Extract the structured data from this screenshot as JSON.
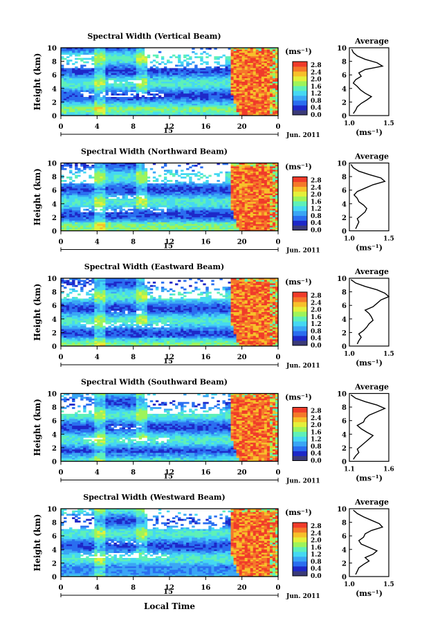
{
  "figure": {
    "xlabel": "Local Time",
    "date_label": "Jun. 2011",
    "day_label": "15",
    "ylabel": "Height (km)",
    "colorbar_unit": "(ms⁻¹)",
    "profile_title": "Average",
    "profile_xlabel": "(ms⁻¹)"
  },
  "colors": {
    "colormap": [
      "#3b3b78",
      "#1e28c8",
      "#2a6ef0",
      "#3aa6f5",
      "#45d8f2",
      "#5ef0b8",
      "#9ef45a",
      "#e4f03a",
      "#f7c02a",
      "#f5782a",
      "#f03b2a"
    ]
  },
  "chart_data": [
    {
      "type": "heatmap",
      "title": "Spectral Width (Vertical Beam)",
      "xlim": [
        0,
        24
      ],
      "xticks": [
        "0",
        "4",
        "8",
        "12",
        "16",
        "20",
        "0"
      ],
      "ylim": [
        0,
        10
      ],
      "yticks": [
        "0",
        "2",
        "4",
        "6",
        "8",
        "10"
      ],
      "colorbar": {
        "range": [
          0,
          3.0
        ],
        "ticks": [
          "0.0",
          "0.4",
          "0.8",
          "1.2",
          "1.6",
          "2.0",
          "2.4",
          "2.8"
        ]
      },
      "profile": {
        "title": "Average",
        "xlim": [
          1.0,
          1.5
        ],
        "xticks": [
          "1.0",
          "1.5"
        ],
        "heights": [
          0.3,
          0.8,
          1.3,
          1.8,
          2.3,
          2.8,
          3.3,
          3.8,
          4.3,
          4.8,
          5.3,
          5.8,
          6.3,
          6.8,
          7.3,
          7.8,
          8.3,
          8.8,
          9.3,
          9.8
        ],
        "values": [
          1.05,
          1.08,
          1.1,
          1.15,
          1.22,
          1.28,
          1.2,
          1.14,
          1.1,
          1.05,
          1.08,
          1.15,
          1.12,
          1.2,
          1.42,
          1.35,
          1.2,
          1.1,
          1.05,
          1.03
        ]
      }
    },
    {
      "type": "heatmap",
      "title": "Spectral Width (Northward Beam)",
      "xlim": [
        0,
        24
      ],
      "xticks": [
        "0",
        "4",
        "8",
        "12",
        "16",
        "20",
        "0"
      ],
      "ylim": [
        0,
        10
      ],
      "yticks": [
        "0",
        "2",
        "4",
        "6",
        "8",
        "10"
      ],
      "colorbar": {
        "range": [
          0,
          3.0
        ],
        "ticks": [
          "0.0",
          "0.4",
          "0.8",
          "1.2",
          "1.6",
          "2.0",
          "2.4",
          "2.8"
        ]
      },
      "profile": {
        "title": "Average",
        "xlim": [
          1.0,
          1.5
        ],
        "xticks": [
          "1.0",
          "1.5"
        ],
        "heights": [
          0.3,
          0.8,
          1.3,
          1.8,
          2.3,
          2.8,
          3.3,
          3.8,
          4.3,
          4.8,
          5.3,
          5.8,
          6.3,
          6.8,
          7.3,
          7.8,
          8.3,
          8.8,
          9.3,
          9.8
        ],
        "values": [
          1.08,
          1.1,
          1.12,
          1.1,
          1.15,
          1.2,
          1.22,
          1.18,
          1.12,
          1.1,
          1.06,
          1.1,
          1.2,
          1.3,
          1.45,
          1.4,
          1.25,
          1.12,
          1.05,
          1.02
        ]
      }
    },
    {
      "type": "heatmap",
      "title": "Spectral Width (Eastward Beam)",
      "xlim": [
        0,
        24
      ],
      "xticks": [
        "0",
        "4",
        "8",
        "12",
        "16",
        "20",
        "0"
      ],
      "ylim": [
        0,
        10
      ],
      "yticks": [
        "0",
        "2",
        "4",
        "6",
        "8",
        "10"
      ],
      "colorbar": {
        "range": [
          0,
          3.0
        ],
        "ticks": [
          "0.0",
          "0.4",
          "0.8",
          "1.2",
          "1.6",
          "2.0",
          "2.4",
          "2.8"
        ]
      },
      "profile": {
        "title": "Average",
        "xlim": [
          1.0,
          1.5
        ],
        "xticks": [
          "1.0",
          "1.5"
        ],
        "heights": [
          0.3,
          0.8,
          1.3,
          1.8,
          2.3,
          2.8,
          3.3,
          3.8,
          4.3,
          4.8,
          5.3,
          5.8,
          6.3,
          6.8,
          7.3,
          7.8,
          8.3,
          8.8,
          9.3,
          9.8
        ],
        "values": [
          1.1,
          1.12,
          1.15,
          1.12,
          1.18,
          1.22,
          1.25,
          1.3,
          1.28,
          1.25,
          1.2,
          1.3,
          1.35,
          1.4,
          1.5,
          1.45,
          1.35,
          1.2,
          1.08,
          1.02
        ]
      }
    },
    {
      "type": "heatmap",
      "title": "Spectral Width (Southward Beam)",
      "xlim": [
        0,
        24
      ],
      "xticks": [
        "0",
        "4",
        "8",
        "12",
        "16",
        "20",
        "0"
      ],
      "ylim": [
        0,
        10
      ],
      "yticks": [
        "0",
        "2",
        "4",
        "6",
        "8",
        "10"
      ],
      "colorbar": {
        "range": [
          0,
          3.0
        ],
        "ticks": [
          "0.0",
          "0.4",
          "0.8",
          "1.2",
          "1.6",
          "2.0",
          "2.4",
          "2.8"
        ]
      },
      "profile": {
        "title": "Average",
        "xlim": [
          1.1,
          1.6
        ],
        "xticks": [
          "1.1",
          "1.6"
        ],
        "heights": [
          0.3,
          0.8,
          1.3,
          1.8,
          2.3,
          2.8,
          3.3,
          3.8,
          4.3,
          4.8,
          5.3,
          5.8,
          6.3,
          6.8,
          7.3,
          7.8,
          8.3,
          8.8,
          9.3,
          9.8
        ],
        "values": [
          1.15,
          1.18,
          1.22,
          1.2,
          1.25,
          1.3,
          1.35,
          1.4,
          1.32,
          1.25,
          1.2,
          1.28,
          1.3,
          1.35,
          1.45,
          1.55,
          1.45,
          1.3,
          1.18,
          1.12
        ]
      }
    },
    {
      "type": "heatmap",
      "title": "Spectral Width (Westward Beam)",
      "xlim": [
        0,
        24
      ],
      "xticks": [
        "0",
        "4",
        "8",
        "12",
        "16",
        "20",
        "0"
      ],
      "ylim": [
        0,
        10
      ],
      "yticks": [
        "0",
        "2",
        "4",
        "6",
        "8",
        "10"
      ],
      "colorbar": {
        "range": [
          0,
          3.0
        ],
        "ticks": [
          "0.0",
          "0.4",
          "0.8",
          "1.2",
          "1.6",
          "2.0",
          "2.4",
          "2.8"
        ]
      },
      "profile": {
        "title": "Average",
        "xlim": [
          1.0,
          1.5
        ],
        "xticks": [
          "1.0",
          "1.5"
        ],
        "heights": [
          0.3,
          0.8,
          1.3,
          1.8,
          2.3,
          2.8,
          3.3,
          3.8,
          4.3,
          4.8,
          5.3,
          5.8,
          6.3,
          6.8,
          7.3,
          7.8,
          8.3,
          8.8,
          9.3,
          9.8
        ],
        "values": [
          1.08,
          1.1,
          1.12,
          1.18,
          1.25,
          1.2,
          1.3,
          1.35,
          1.25,
          1.15,
          1.12,
          1.18,
          1.2,
          1.28,
          1.42,
          1.38,
          1.28,
          1.18,
          1.1,
          1.05
        ]
      }
    }
  ]
}
